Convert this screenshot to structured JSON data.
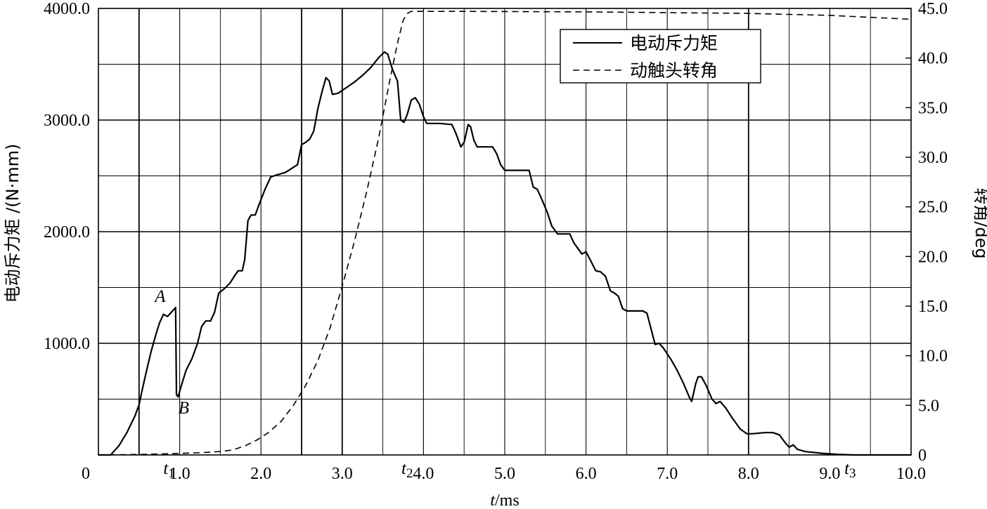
{
  "chart_data": {
    "type": "line",
    "xlabel_var": "t",
    "xlabel_unit": "/ms",
    "ylabel_left": "电动斥力矩 /(N·mm)",
    "ylabel_right": "转角/deg",
    "xlim": [
      0,
      10
    ],
    "ylim_left": [
      0,
      4000
    ],
    "ylim_right": [
      0,
      45
    ],
    "grid": true,
    "legend_position": "top-right",
    "x_ticks": [
      {
        "value": 0,
        "label": "0"
      },
      {
        "value": 1,
        "label": "1.0"
      },
      {
        "value": 2,
        "label": "2.0"
      },
      {
        "value": 3,
        "label": "3.0"
      },
      {
        "value": 4,
        "label": "4.0"
      },
      {
        "value": 5,
        "label": "5.0"
      },
      {
        "value": 6,
        "label": "6.0"
      },
      {
        "value": 7,
        "label": "7.0"
      },
      {
        "value": 8,
        "label": "8.0"
      },
      {
        "value": 9,
        "label": "9.0"
      },
      {
        "value": 10,
        "label": "10.0"
      }
    ],
    "y_left_ticks": [
      {
        "value": 1000,
        "label": "1000.0"
      },
      {
        "value": 2000,
        "label": "2000.0"
      },
      {
        "value": 3000,
        "label": "3000.0"
      },
      {
        "value": 4000,
        "label": "4000.0"
      }
    ],
    "y_right_ticks": [
      {
        "value": 0,
        "label": "0"
      },
      {
        "value": 5,
        "label": "5.0"
      },
      {
        "value": 10,
        "label": "10.0"
      },
      {
        "value": 15,
        "label": "15.0"
      },
      {
        "value": 20,
        "label": "20.0"
      },
      {
        "value": 25,
        "label": "25.0"
      },
      {
        "value": 30,
        "label": "30.0"
      },
      {
        "value": 35,
        "label": "35.0"
      },
      {
        "value": 40,
        "label": "40.0"
      },
      {
        "value": 45,
        "label": "45.0"
      }
    ],
    "annotations": [
      {
        "text": "A",
        "x": 0.76,
        "y": 1370,
        "sub": ""
      },
      {
        "text": "B",
        "x": 1.05,
        "y": 370,
        "sub": ""
      },
      {
        "text": "t",
        "sub": "1",
        "x": 0.87,
        "y": -180
      },
      {
        "text": "t",
        "sub": "2",
        "x": 3.8,
        "y": -180
      },
      {
        "text": "t",
        "sub": "3",
        "x": 9.25,
        "y": -180
      }
    ],
    "series": [
      {
        "name": "电动斥力矩",
        "axis": "left",
        "style": "solid",
        "points": [
          [
            0.0,
            0
          ],
          [
            0.15,
            0
          ],
          [
            0.25,
            80
          ],
          [
            0.35,
            200
          ],
          [
            0.45,
            350
          ],
          [
            0.5,
            450
          ],
          [
            0.55,
            620
          ],
          [
            0.6,
            780
          ],
          [
            0.65,
            930
          ],
          [
            0.7,
            1060
          ],
          [
            0.75,
            1180
          ],
          [
            0.8,
            1260
          ],
          [
            0.85,
            1240
          ],
          [
            0.9,
            1280
          ],
          [
            0.95,
            1320
          ],
          [
            0.96,
            540
          ],
          [
            0.98,
            520
          ],
          [
            1.02,
            620
          ],
          [
            1.08,
            760
          ],
          [
            1.15,
            860
          ],
          [
            1.22,
            1000
          ],
          [
            1.27,
            1150
          ],
          [
            1.32,
            1200
          ],
          [
            1.38,
            1200
          ],
          [
            1.43,
            1280
          ],
          [
            1.48,
            1450
          ],
          [
            1.55,
            1490
          ],
          [
            1.62,
            1540
          ],
          [
            1.68,
            1610
          ],
          [
            1.72,
            1650
          ],
          [
            1.77,
            1650
          ],
          [
            1.8,
            1750
          ],
          [
            1.84,
            2100
          ],
          [
            1.88,
            2150
          ],
          [
            1.93,
            2150
          ],
          [
            1.98,
            2250
          ],
          [
            2.05,
            2380
          ],
          [
            2.12,
            2490
          ],
          [
            2.2,
            2510
          ],
          [
            2.3,
            2530
          ],
          [
            2.45,
            2600
          ],
          [
            2.5,
            2780
          ],
          [
            2.55,
            2800
          ],
          [
            2.6,
            2830
          ],
          [
            2.65,
            2900
          ],
          [
            2.7,
            3100
          ],
          [
            2.75,
            3250
          ],
          [
            2.8,
            3380
          ],
          [
            2.84,
            3350
          ],
          [
            2.88,
            3230
          ],
          [
            2.95,
            3240
          ],
          [
            3.05,
            3290
          ],
          [
            3.15,
            3340
          ],
          [
            3.25,
            3400
          ],
          [
            3.35,
            3470
          ],
          [
            3.45,
            3560
          ],
          [
            3.52,
            3610
          ],
          [
            3.56,
            3590
          ],
          [
            3.62,
            3450
          ],
          [
            3.68,
            3350
          ],
          [
            3.72,
            3000
          ],
          [
            3.76,
            2980
          ],
          [
            3.8,
            3050
          ],
          [
            3.85,
            3180
          ],
          [
            3.9,
            3200
          ],
          [
            3.95,
            3140
          ],
          [
            4.0,
            3030
          ],
          [
            4.04,
            2970
          ],
          [
            4.2,
            2970
          ],
          [
            4.35,
            2960
          ],
          [
            4.4,
            2880
          ],
          [
            4.46,
            2760
          ],
          [
            4.5,
            2800
          ],
          [
            4.55,
            2960
          ],
          [
            4.58,
            2940
          ],
          [
            4.62,
            2820
          ],
          [
            4.66,
            2760
          ],
          [
            4.85,
            2760
          ],
          [
            4.9,
            2700
          ],
          [
            4.95,
            2600
          ],
          [
            5.0,
            2550
          ],
          [
            5.3,
            2550
          ],
          [
            5.35,
            2400
          ],
          [
            5.4,
            2380
          ],
          [
            5.45,
            2300
          ],
          [
            5.52,
            2180
          ],
          [
            5.58,
            2050
          ],
          [
            5.65,
            1980
          ],
          [
            5.8,
            1980
          ],
          [
            5.85,
            1900
          ],
          [
            5.9,
            1850
          ],
          [
            5.95,
            1800
          ],
          [
            6.0,
            1820
          ],
          [
            6.05,
            1750
          ],
          [
            6.12,
            1650
          ],
          [
            6.18,
            1640
          ],
          [
            6.24,
            1600
          ],
          [
            6.3,
            1470
          ],
          [
            6.35,
            1450
          ],
          [
            6.4,
            1420
          ],
          [
            6.45,
            1310
          ],
          [
            6.5,
            1290
          ],
          [
            6.7,
            1290
          ],
          [
            6.75,
            1270
          ],
          [
            6.8,
            1130
          ],
          [
            6.85,
            990
          ],
          [
            6.9,
            1000
          ],
          [
            6.95,
            960
          ],
          [
            7.05,
            850
          ],
          [
            7.12,
            760
          ],
          [
            7.2,
            640
          ],
          [
            7.27,
            520
          ],
          [
            7.3,
            480
          ],
          [
            7.35,
            640
          ],
          [
            7.38,
            700
          ],
          [
            7.42,
            700
          ],
          [
            7.48,
            620
          ],
          [
            7.55,
            500
          ],
          [
            7.6,
            460
          ],
          [
            7.65,
            480
          ],
          [
            7.72,
            420
          ],
          [
            7.8,
            330
          ],
          [
            7.9,
            230
          ],
          [
            7.98,
            190
          ],
          [
            8.05,
            190
          ],
          [
            8.2,
            200
          ],
          [
            8.3,
            200
          ],
          [
            8.38,
            180
          ],
          [
            8.45,
            110
          ],
          [
            8.5,
            70
          ],
          [
            8.55,
            90
          ],
          [
            8.6,
            50
          ],
          [
            8.7,
            30
          ],
          [
            8.9,
            15
          ],
          [
            9.1,
            5
          ],
          [
            9.3,
            0
          ],
          [
            9.6,
            0
          ],
          [
            10.0,
            0
          ]
        ]
      },
      {
        "name": "动触头转角",
        "axis": "right",
        "style": "dashed",
        "points": [
          [
            0.0,
            0.0
          ],
          [
            0.5,
            0.05
          ],
          [
            1.0,
            0.15
          ],
          [
            1.3,
            0.25
          ],
          [
            1.5,
            0.35
          ],
          [
            1.65,
            0.5
          ],
          [
            1.8,
            0.9
          ],
          [
            1.95,
            1.5
          ],
          [
            2.1,
            2.3
          ],
          [
            2.25,
            3.4
          ],
          [
            2.4,
            5.0
          ],
          [
            2.55,
            7.0
          ],
          [
            2.7,
            9.5
          ],
          [
            2.85,
            12.8
          ],
          [
            3.0,
            17.0
          ],
          [
            3.15,
            21.5
          ],
          [
            3.3,
            26.5
          ],
          [
            3.45,
            32.0
          ],
          [
            3.58,
            37.5
          ],
          [
            3.68,
            41.5
          ],
          [
            3.75,
            43.8
          ],
          [
            3.8,
            44.5
          ],
          [
            3.85,
            44.7
          ],
          [
            4.5,
            44.7
          ],
          [
            6.0,
            44.65
          ],
          [
            8.0,
            44.5
          ],
          [
            9.0,
            44.3
          ],
          [
            10.0,
            43.9
          ]
        ]
      }
    ],
    "legend": [
      "电动斥力矩",
      "动触头转角"
    ]
  }
}
